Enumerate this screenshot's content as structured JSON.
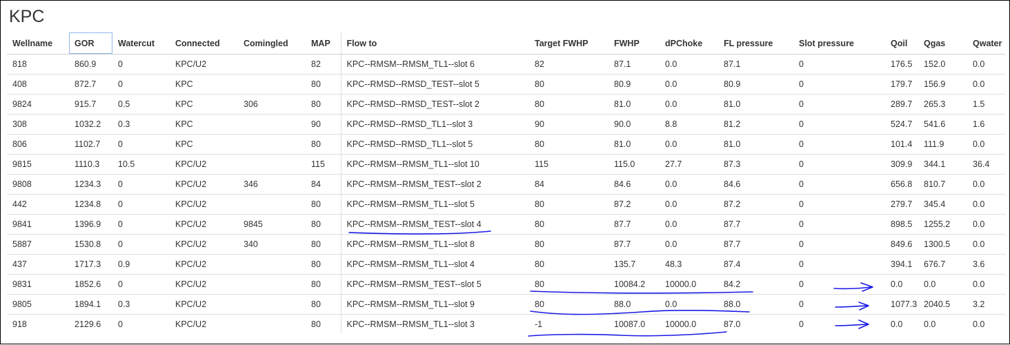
{
  "page": {
    "title": "KPC"
  },
  "table": {
    "columns": [
      "Wellname",
      "GOR",
      "Watercut",
      "Connected",
      "Comingled",
      "MAP",
      "Flow to",
      "Target FWHP",
      "FWHP",
      "dPChoke",
      "FL pressure",
      "Slot pressure",
      "Qoil",
      "Qgas",
      "Qwater"
    ],
    "sorted_column": "GOR",
    "rows": [
      [
        "818",
        "860.9",
        "0",
        "KPC/U2",
        "",
        "82",
        "KPC--RMSM--RMSM_TL1--slot 6",
        "82",
        "87.1",
        "0.0",
        "87.1",
        "0",
        "176.5",
        "152.0",
        "0.0"
      ],
      [
        "408",
        "872.7",
        "0",
        "KPC",
        "",
        "80",
        "KPC--RMSD--RMSD_TEST--slot 5",
        "80",
        "80.9",
        "0.0",
        "80.9",
        "0",
        "179.7",
        "156.9",
        "0.0"
      ],
      [
        "9824",
        "915.7",
        "0.5",
        "KPC",
        "306",
        "80",
        "KPC--RMSD--RMSD_TEST--slot 2",
        "80",
        "81.0",
        "0.0",
        "81.0",
        "0",
        "289.7",
        "265.3",
        "1.5"
      ],
      [
        "308",
        "1032.2",
        "0.3",
        "KPC",
        "",
        "90",
        "KPC--RMSD--RMSD_TL1--slot 3",
        "90",
        "90.0",
        "8.8",
        "81.2",
        "0",
        "524.7",
        "541.6",
        "1.6"
      ],
      [
        "806",
        "1102.7",
        "0",
        "KPC",
        "",
        "80",
        "KPC--RMSD--RMSD_TL1--slot 5",
        "80",
        "81.0",
        "0.0",
        "81.0",
        "0",
        "101.4",
        "111.9",
        "0.0"
      ],
      [
        "9815",
        "1110.3",
        "10.5",
        "KPC/U2",
        "",
        "115",
        "KPC--RMSM--RMSM_TL1--slot 10",
        "115",
        "115.0",
        "27.7",
        "87.3",
        "0",
        "309.9",
        "344.1",
        "36.4"
      ],
      [
        "9808",
        "1234.3",
        "0",
        "KPC/U2",
        "346",
        "84",
        "KPC--RMSM--RMSM_TEST--slot 2",
        "84",
        "84.6",
        "0.0",
        "84.6",
        "0",
        "656.8",
        "810.7",
        "0.0"
      ],
      [
        "442",
        "1234.8",
        "0",
        "KPC/U2",
        "",
        "80",
        "KPC--RMSM--RMSM_TL1--slot 5",
        "80",
        "87.2",
        "0.0",
        "87.2",
        "0",
        "279.7",
        "345.4",
        "0.0"
      ],
      [
        "9841",
        "1396.9",
        "0",
        "KPC/U2",
        "9845",
        "80",
        "KPC--RMSM--RMSM_TEST--slot 4",
        "80",
        "87.7",
        "0.0",
        "87.7",
        "0",
        "898.5",
        "1255.2",
        "0.0"
      ],
      [
        "5887",
        "1530.8",
        "0",
        "KPC/U2",
        "340",
        "80",
        "KPC--RMSM--RMSM_TL1--slot 8",
        "80",
        "87.7",
        "0.0",
        "87.7",
        "0",
        "849.6",
        "1300.5",
        "0.0"
      ],
      [
        "437",
        "1717.3",
        "0.9",
        "KPC/U2",
        "",
        "80",
        "KPC--RMSM--RMSM_TL1--slot 4",
        "80",
        "135.7",
        "48.3",
        "87.4",
        "0",
        "394.1",
        "676.7",
        "3.6"
      ],
      [
        "9831",
        "1852.6",
        "0",
        "KPC/U2",
        "",
        "80",
        "KPC--RMSM--RMSM_TEST--slot 5",
        "80",
        "10084.2",
        "10000.0",
        "84.2",
        "0",
        "0.0",
        "0.0",
        "0.0"
      ],
      [
        "9805",
        "1894.1",
        "0.3",
        "KPC/U2",
        "",
        "80",
        "KPC--RMSM--RMSM_TL1--slot 9",
        "80",
        "88.0",
        "0.0",
        "88.0",
        "0",
        "1077.3",
        "2040.5",
        "3.2"
      ],
      [
        "918",
        "2129.6",
        "0",
        "KPC/U2",
        "",
        "80",
        "KPC--RMSM--RMSM_TL1--slot 3",
        "-1",
        "10087.0",
        "10000.0",
        "87.0",
        "0",
        "0.0",
        "0.0",
        "0.0"
      ]
    ]
  },
  "annotations": {
    "ink_color": "#1a1ae6"
  }
}
